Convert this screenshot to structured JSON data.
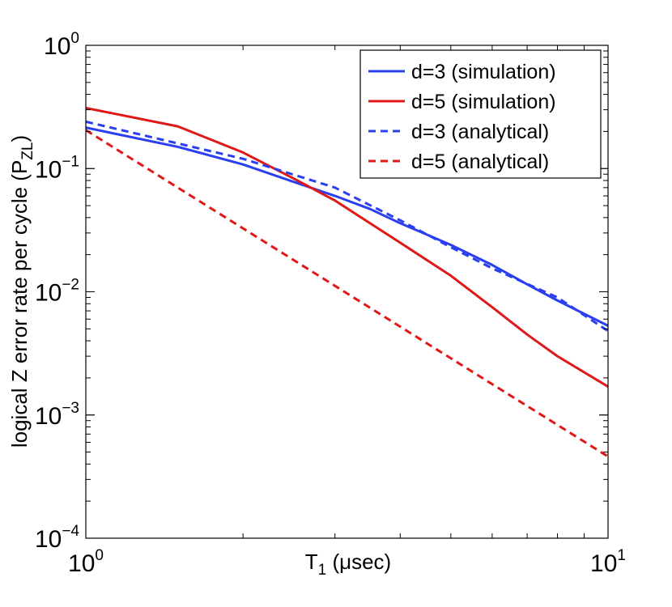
{
  "chart_data": {
    "type": "line",
    "title": "",
    "xscale": "log",
    "yscale": "log",
    "xlim": [
      1,
      10
    ],
    "ylim": [
      0.0001,
      1
    ],
    "xlabel": {
      "main": "T",
      "sub": "1",
      "rest": " (μsec)"
    },
    "ylabel": {
      "main": "logical Z error rate per cycle (P",
      "sub": "ZL",
      "rest": ")"
    },
    "xticks": [
      {
        "value": 1,
        "base": "10",
        "exp": "0"
      },
      {
        "value": 10,
        "base": "10",
        "exp": "1"
      }
    ],
    "yticks": [
      {
        "value": 1,
        "base": "10",
        "exp": "0"
      },
      {
        "value": 0.1,
        "base": "10",
        "exp": "−1"
      },
      {
        "value": 0.01,
        "base": "10",
        "exp": "−2"
      },
      {
        "value": 0.001,
        "base": "10",
        "exp": "−3"
      },
      {
        "value": 0.0001,
        "base": "10",
        "exp": "−4"
      }
    ],
    "legend_position": "top-right",
    "series": [
      {
        "name": "d=3 (simulation)",
        "color": "#2a3ff0",
        "style": "solid",
        "x": [
          1,
          1.5,
          2,
          2.5,
          3,
          3.5,
          4,
          5,
          6,
          7,
          8,
          10
        ],
        "y": [
          0.215,
          0.15,
          0.108,
          0.078,
          0.06,
          0.047,
          0.036,
          0.024,
          0.0165,
          0.0115,
          0.0085,
          0.0053
        ]
      },
      {
        "name": "d=5 (simulation)",
        "color": "#e01818",
        "style": "solid",
        "x": [
          1,
          1.5,
          2,
          2.5,
          3,
          3.5,
          4,
          5,
          6,
          7,
          8,
          10
        ],
        "y": [
          0.31,
          0.22,
          0.135,
          0.083,
          0.055,
          0.036,
          0.025,
          0.0135,
          0.0075,
          0.0045,
          0.003,
          0.0017
        ]
      },
      {
        "name": "d=3 (analytical)",
        "color": "#2a3ff0",
        "style": "dashed",
        "x": [
          1,
          2,
          3,
          4,
          5,
          6,
          8,
          10
        ],
        "y": [
          0.24,
          0.12,
          0.07,
          0.038,
          0.023,
          0.0155,
          0.009,
          0.0048
        ]
      },
      {
        "name": "d=5 (analytical)",
        "color": "#e01818",
        "style": "dashed",
        "x": [
          1,
          10
        ],
        "y": [
          0.205,
          0.00046
        ]
      }
    ]
  }
}
